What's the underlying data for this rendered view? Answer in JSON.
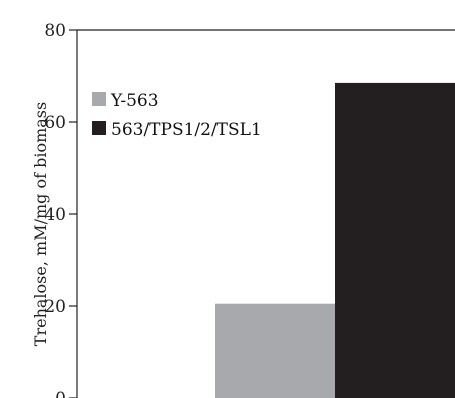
{
  "chart_data": {
    "type": "bar",
    "title": "",
    "xlabel": "",
    "ylabel": "Trehalose, mM/mg of biomass",
    "ylim": [
      0,
      80
    ],
    "yticks": [
      0,
      20,
      40,
      60,
      80
    ],
    "grid": false,
    "legend_position": "top-left",
    "categories": [
      ""
    ],
    "series": [
      {
        "name": "Y-563",
        "values": [
          20.5
        ],
        "color": "#a7a9ac"
      },
      {
        "name": "563/TPS1/2/TSL1",
        "values": [
          68.5
        ],
        "color": "#231f20"
      }
    ]
  }
}
